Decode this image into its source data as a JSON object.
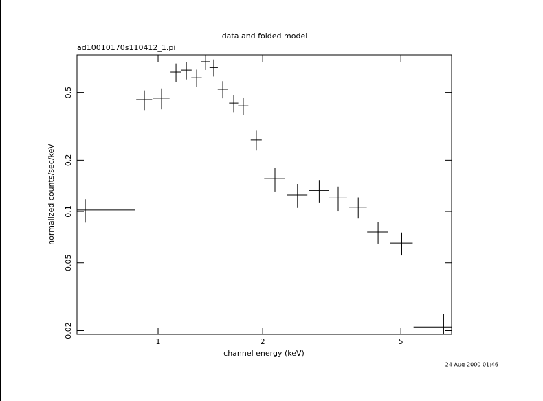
{
  "chart_data": {
    "type": "scatter",
    "title": "data and folded model",
    "subtitle": "ad10010170s110412_1.pi",
    "xlabel": "channel energy (keV)",
    "ylabel": "normalized counts/sec/keV",
    "timestamp": "24-Aug-2000 01:46",
    "x": [
      0.617,
      0.913,
      1.023,
      1.126,
      1.206,
      1.291,
      1.37,
      1.446,
      1.535,
      1.651,
      1.759,
      1.918,
      2.17,
      2.52,
      2.91,
      3.3,
      3.77,
      4.3,
      5.03,
      6.64
    ],
    "xerr": [
      0.243,
      0.048,
      0.056,
      0.04,
      0.043,
      0.045,
      0.04,
      0.04,
      0.05,
      0.05,
      0.06,
      0.07,
      0.15,
      0.17,
      0.19,
      0.2,
      0.22,
      0.3,
      0.38,
      1.2
    ],
    "values": [
      0.102,
      0.454,
      0.463,
      0.658,
      0.676,
      0.61,
      0.757,
      0.7,
      0.522,
      0.433,
      0.417,
      0.263,
      0.156,
      0.125,
      0.133,
      0.12,
      0.106,
      0.0757,
      0.0652,
      0.021
    ],
    "yerr": [
      0.016,
      0.06,
      0.065,
      0.08,
      0.08,
      0.07,
      0.08,
      0.08,
      0.06,
      0.05,
      0.05,
      0.035,
      0.025,
      0.02,
      0.02,
      0.02,
      0.015,
      0.011,
      0.01,
      0.004
    ],
    "color": "#000000",
    "xscale": "log",
    "yscale": "log",
    "xlim": [
      0.584,
      7.0
    ],
    "ylim": [
      0.019,
      0.83
    ],
    "xticks": [
      1,
      2,
      5
    ],
    "yticks": [
      0.02,
      0.05,
      0.1,
      0.2,
      0.5
    ]
  }
}
